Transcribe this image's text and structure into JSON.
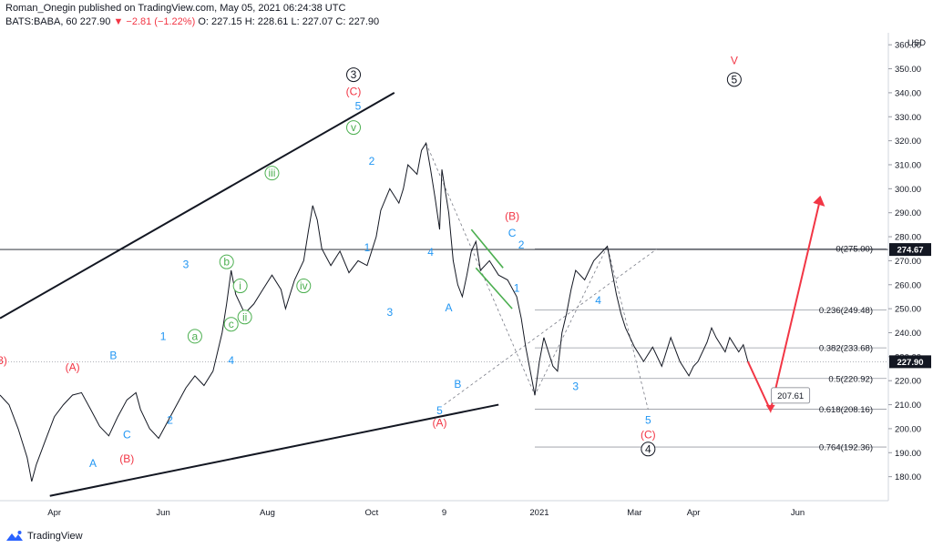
{
  "header": {
    "publisher_line": "Roman_Onegin published on TradingView.com, May 05, 2021 06:24:38 UTC",
    "symbol": "BATS:BABA, 60",
    "last": "227.90",
    "change": "−2.81 (−1.22%)",
    "open": "O: 227.15",
    "high": "H: 228.61",
    "low": "L: 227.07",
    "close": "C: 227.90"
  },
  "footer": {
    "brand": "TradingView",
    "icon": "tradingview-logo-icon"
  },
  "colors": {
    "blue": "#2196f3",
    "red": "#f23645",
    "green": "#4caf50",
    "black": "#131722"
  },
  "chart_data": {
    "type": "line",
    "currency": "USD",
    "ylim": [
      170,
      365
    ],
    "y_ticks": [
      180,
      190,
      200,
      210,
      220,
      230,
      240,
      250,
      260,
      270,
      280,
      290,
      300,
      310,
      320,
      330,
      340,
      350,
      360
    ],
    "x_ticks": [
      {
        "label": "Apr",
        "idx": 12
      },
      {
        "label": "Jun",
        "idx": 36
      },
      {
        "label": "Aug",
        "idx": 59
      },
      {
        "label": "Oct",
        "idx": 82
      },
      {
        "label": "9",
        "idx": 98
      },
      {
        "label": "2021",
        "idx": 119
      },
      {
        "label": "Mar",
        "idx": 140
      },
      {
        "label": "Apr",
        "idx": 153
      },
      {
        "label": "Jun",
        "idx": 176
      }
    ],
    "x_count": 196,
    "price_flags": [
      {
        "value": 274.67,
        "label": "274.67",
        "style": "dark"
      },
      {
        "value": 227.9,
        "label": "227.90",
        "style": "dark"
      }
    ],
    "series": [
      {
        "points": [
          [
            0,
            214
          ],
          [
            2,
            210
          ],
          [
            4,
            200
          ],
          [
            6,
            188
          ],
          [
            7,
            178
          ],
          [
            8,
            185
          ],
          [
            10,
            195
          ],
          [
            12,
            205
          ],
          [
            14,
            210
          ],
          [
            16,
            214
          ],
          [
            18,
            215
          ],
          [
            20,
            208
          ],
          [
            22,
            201
          ],
          [
            24,
            197
          ],
          [
            26,
            205
          ],
          [
            28,
            212
          ],
          [
            30,
            215
          ],
          [
            31,
            208
          ],
          [
            33,
            200
          ],
          [
            35,
            196
          ],
          [
            37,
            203
          ],
          [
            39,
            210
          ],
          [
            41,
            217
          ],
          [
            43,
            222
          ],
          [
            45,
            218
          ],
          [
            47,
            224
          ],
          [
            48,
            232
          ],
          [
            49,
            240
          ],
          [
            50,
            252
          ],
          [
            51,
            266
          ],
          [
            52,
            256
          ],
          [
            54,
            248
          ],
          [
            56,
            252
          ],
          [
            58,
            258
          ],
          [
            60,
            264
          ],
          [
            62,
            258
          ],
          [
            63,
            250
          ],
          [
            65,
            262
          ],
          [
            67,
            270
          ],
          [
            68,
            282
          ],
          [
            69,
            293
          ],
          [
            70,
            287
          ],
          [
            71,
            275
          ],
          [
            73,
            268
          ],
          [
            75,
            274
          ],
          [
            77,
            265
          ],
          [
            79,
            270
          ],
          [
            81,
            268
          ],
          [
            83,
            280
          ],
          [
            84,
            291
          ],
          [
            86,
            300
          ],
          [
            88,
            294
          ],
          [
            89,
            300
          ],
          [
            90,
            310
          ],
          [
            92,
            306
          ],
          [
            93,
            316
          ],
          [
            94,
            319
          ],
          [
            95,
            308
          ],
          [
            96,
            296
          ],
          [
            97,
            283
          ],
          [
            97.5,
            308
          ],
          [
            99,
            290
          ],
          [
            100,
            270
          ],
          [
            101,
            260
          ],
          [
            102,
            255
          ],
          [
            103,
            264
          ],
          [
            104,
            274
          ],
          [
            105,
            278
          ],
          [
            106,
            266
          ],
          [
            108,
            270
          ],
          [
            110,
            264
          ],
          [
            112,
            262
          ],
          [
            114,
            255
          ],
          [
            115,
            246
          ],
          [
            116,
            234
          ],
          [
            117,
            224
          ],
          [
            118,
            214
          ],
          [
            119,
            228
          ],
          [
            120,
            238
          ],
          [
            121,
            232
          ],
          [
            122,
            226
          ],
          [
            123,
            224
          ],
          [
            124,
            240
          ],
          [
            125,
            248
          ],
          [
            126,
            258
          ],
          [
            127,
            266
          ],
          [
            129,
            262
          ],
          [
            131,
            270
          ],
          [
            133,
            274
          ],
          [
            134,
            276
          ],
          [
            135,
            266
          ],
          [
            136,
            256
          ],
          [
            137,
            248
          ],
          [
            138,
            242
          ],
          [
            140,
            234
          ],
          [
            142,
            228
          ],
          [
            144,
            234
          ],
          [
            146,
            226
          ],
          [
            148,
            238
          ],
          [
            150,
            228
          ],
          [
            152,
            222
          ],
          [
            153,
            226
          ],
          [
            154,
            228
          ],
          [
            156,
            236
          ],
          [
            157,
            242
          ],
          [
            158,
            238
          ],
          [
            160,
            232
          ],
          [
            161,
            238
          ],
          [
            163,
            232
          ],
          [
            164,
            235
          ],
          [
            165,
            228
          ]
        ]
      }
    ],
    "trendlines": [
      {
        "from": [
          0,
          246
        ],
        "to": [
          87,
          340
        ]
      },
      {
        "from": [
          11,
          172
        ],
        "to": [
          110,
          210
        ]
      }
    ],
    "fib_levels": [
      {
        "ratio": "0",
        "value": 275.0,
        "label": "0(275.00)"
      },
      {
        "ratio": "0.236",
        "value": 249.48,
        "label": "0.236(249.48)"
      },
      {
        "ratio": "0.382",
        "value": 233.68,
        "label": "0.382(233.68)"
      },
      {
        "ratio": "0.5",
        "value": 220.92,
        "label": "0.5(220.92)"
      },
      {
        "ratio": "0.618",
        "value": 208.16,
        "label": "0.618(208.16)"
      },
      {
        "ratio": "0.764",
        "value": 192.36,
        "label": "0.764(192.36)"
      }
    ],
    "target_label": "207.61",
    "wave_labels": [
      {
        "text": "3)",
        "color": "red",
        "idx": 0.5,
        "y": 227
      },
      {
        "text": "(A)",
        "color": "red",
        "idx": 16,
        "y": 224
      },
      {
        "text": "B",
        "color": "blue",
        "idx": 25,
        "y": 229
      },
      {
        "text": "C",
        "color": "blue",
        "idx": 28,
        "y": 196
      },
      {
        "text": "(B)",
        "color": "red",
        "idx": 28,
        "y": 186
      },
      {
        "text": "A",
        "color": "blue",
        "idx": 20.5,
        "y": 184
      },
      {
        "text": "1",
        "color": "blue",
        "idx": 36,
        "y": 237
      },
      {
        "text": "2",
        "color": "blue",
        "idx": 37.5,
        "y": 202
      },
      {
        "text": "3",
        "color": "blue",
        "idx": 41,
        "y": 267
      },
      {
        "text": "4",
        "color": "blue",
        "idx": 51,
        "y": 227
      },
      {
        "text": "a",
        "color": "green",
        "circle": true,
        "idx": 43,
        "y": 237
      },
      {
        "text": "b",
        "color": "green",
        "circle": true,
        "idx": 50,
        "y": 268
      },
      {
        "text": "i",
        "color": "green",
        "circle": true,
        "idx": 53,
        "y": 258
      },
      {
        "text": "c",
        "color": "green",
        "circle": true,
        "idx": 51,
        "y": 242
      },
      {
        "text": "ii",
        "color": "green",
        "circle": true,
        "idx": 54,
        "y": 245
      },
      {
        "text": "iii",
        "color": "green",
        "circle": true,
        "idx": 60,
        "y": 305
      },
      {
        "text": "iv",
        "color": "green",
        "circle": true,
        "idx": 67,
        "y": 258
      },
      {
        "text": "v",
        "color": "green",
        "circle": true,
        "idx": 78,
        "y": 324
      },
      {
        "text": "5",
        "color": "blue",
        "idx": 79,
        "y": 333
      },
      {
        "text": "(C)",
        "color": "red",
        "idx": 78,
        "y": 339
      },
      {
        "text": "3",
        "color": "black",
        "circle": true,
        "idx": 78,
        "y": 346
      },
      {
        "text": "2",
        "color": "blue",
        "idx": 82,
        "y": 310
      },
      {
        "text": "1",
        "color": "blue",
        "idx": 81,
        "y": 274
      },
      {
        "text": "3",
        "color": "blue",
        "idx": 86,
        "y": 247
      },
      {
        "text": "4",
        "color": "blue",
        "idx": 95,
        "y": 272
      },
      {
        "text": "A",
        "color": "blue",
        "idx": 99,
        "y": 249
      },
      {
        "text": "B",
        "color": "blue",
        "idx": 101,
        "y": 217
      },
      {
        "text": "5",
        "color": "blue",
        "idx": 97,
        "y": 206
      },
      {
        "text": "(A)",
        "color": "red",
        "idx": 97,
        "y": 201
      },
      {
        "text": "(B)",
        "color": "red",
        "idx": 113,
        "y": 287
      },
      {
        "text": "C",
        "color": "blue",
        "idx": 113,
        "y": 280
      },
      {
        "text": "2",
        "color": "blue",
        "idx": 115,
        "y": 275
      },
      {
        "text": "1",
        "color": "blue",
        "idx": 114,
        "y": 257
      },
      {
        "text": "3",
        "color": "blue",
        "idx": 127,
        "y": 216
      },
      {
        "text": "4",
        "color": "blue",
        "idx": 132,
        "y": 252
      },
      {
        "text": "5",
        "color": "blue",
        "idx": 143,
        "y": 202
      },
      {
        "text": "(C)",
        "color": "red",
        "idx": 143,
        "y": 196
      },
      {
        "text": "4",
        "color": "black",
        "circle": true,
        "idx": 143,
        "y": 190
      },
      {
        "text": "V",
        "color": "red",
        "idx": 162,
        "y": 352
      },
      {
        "text": "5",
        "color": "black",
        "circle": true,
        "idx": 162,
        "y": 344
      }
    ]
  }
}
